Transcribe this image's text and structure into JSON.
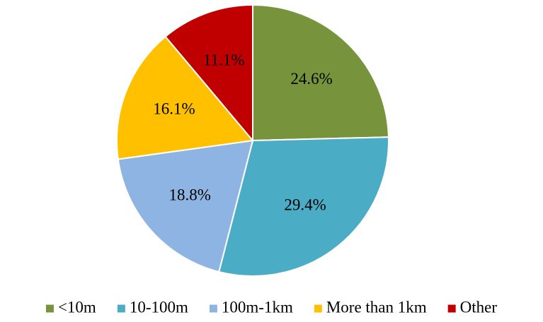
{
  "chart_data": {
    "type": "pie",
    "categories": [
      "<10m",
      "10-100m",
      "100m-1km",
      "More than 1km",
      "Other"
    ],
    "values": [
      24.6,
      29.4,
      18.8,
      16.1,
      11.1
    ],
    "data_labels": [
      "24.6%",
      "29.4%",
      "18.8%",
      "16.1%",
      "11.1%"
    ],
    "colors": [
      "#77933C",
      "#4BACC6",
      "#8EB4E3",
      "#FFC000",
      "#C00000"
    ],
    "start_angle": "12 o'clock",
    "direction": "clockwise",
    "legend_position": "bottom"
  }
}
